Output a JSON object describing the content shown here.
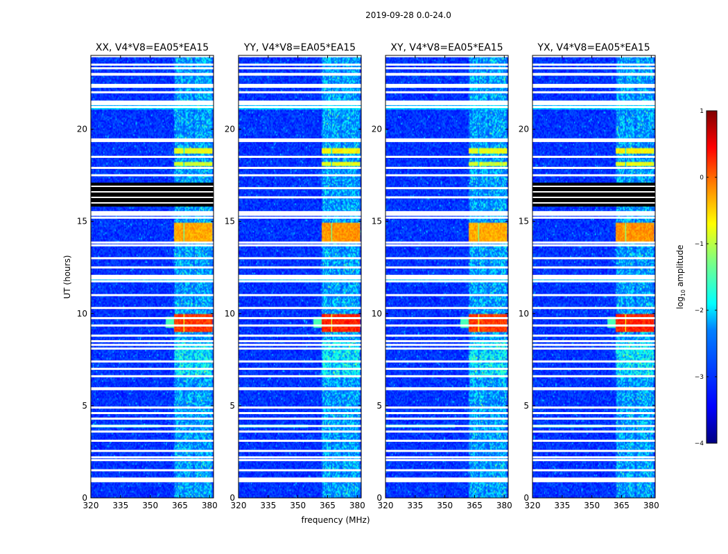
{
  "figure": {
    "suptitle": "2019-09-28 0.0-24.0",
    "xlabel": "frequency (MHz)",
    "ylabel": "UT (hours)"
  },
  "colorbar": {
    "label_prefix": "log",
    "label_sub": "10",
    "label_suffix": " amplitude",
    "colormap": "jet",
    "range": [
      -4,
      1
    ],
    "tick_labels": [
      "1",
      "0",
      "−1",
      "−2",
      "−3",
      "−4"
    ],
    "tick_values": [
      1,
      0,
      -1,
      -2,
      -3,
      -4
    ],
    "colors": [
      "#000080",
      "#0000ff",
      "#0080ff",
      "#00ffff",
      "#80ff80",
      "#ffff00",
      "#ff8000",
      "#ff0000",
      "#800000"
    ]
  },
  "chart_data": {
    "type": "heatmap",
    "title": "2019-09-28 0.0-24.0",
    "xlabel": "frequency (MHz)",
    "ylabel": "UT (hours)",
    "xlim": [
      320,
      382
    ],
    "ylim": [
      0,
      24
    ],
    "x_ticks": [
      320,
      335,
      350,
      365,
      380
    ],
    "x_tick_labels": [
      "320",
      "335",
      "350",
      "365",
      "380"
    ],
    "y_ticks": [
      0,
      5,
      10,
      15,
      20
    ],
    "y_tick_labels": [
      "0",
      "5",
      "10",
      "15",
      "20"
    ],
    "color_scale": "log10 amplitude",
    "color_range": [
      -4,
      1
    ],
    "background_level": -3.0,
    "panels": [
      {
        "title": "XX, V4*V8=EA05*EA15",
        "black_band_ut": [
          15.8,
          17.1
        ],
        "band_level_10h": 0.1
      },
      {
        "title": "YY, V4*V8=EA05*EA15",
        "black_band_ut": null,
        "band_level_10h": 0.2
      },
      {
        "title": "XY, V4*V8=EA05*EA15",
        "black_band_ut": null,
        "band_level_10h": 0.1
      },
      {
        "title": "YX, V4*V8=EA05*EA15",
        "black_band_ut": [
          15.8,
          17.1
        ],
        "band_level_10h": 0.2
      }
    ],
    "rfi_channels_mhz": [
      364.5,
      369.5,
      374.5,
      379.0
    ],
    "rfi_events": [
      {
        "ut": [
          9.0,
          10.0
        ],
        "log10_amplitude": 0.2
      },
      {
        "ut": [
          13.9,
          14.9
        ],
        "log10_amplitude": -0.3
      },
      {
        "ut": [
          18.7,
          19.0
        ],
        "log10_amplitude": -0.8
      },
      {
        "ut": [
          18.0,
          18.2
        ],
        "log10_amplitude": -0.9
      }
    ],
    "flagged_ut_rows": [
      0.95,
      1.05,
      1.5,
      2.05,
      2.2,
      2.55,
      3.1,
      3.6,
      3.9,
      4.3,
      4.6,
      4.9,
      5.9,
      6.6,
      7.0,
      7.4,
      8.1,
      8.3,
      8.5,
      8.8,
      9.35,
      9.75,
      10.3,
      11.0,
      11.75,
      12.0,
      12.5,
      13.0,
      13.7,
      13.85,
      15.2,
      15.5,
      16.8,
      16.3,
      17.5,
      17.9,
      18.5,
      19.4,
      21.2,
      21.4,
      22.0,
      22.3,
      22.4,
      23.3,
      23.5
    ]
  }
}
